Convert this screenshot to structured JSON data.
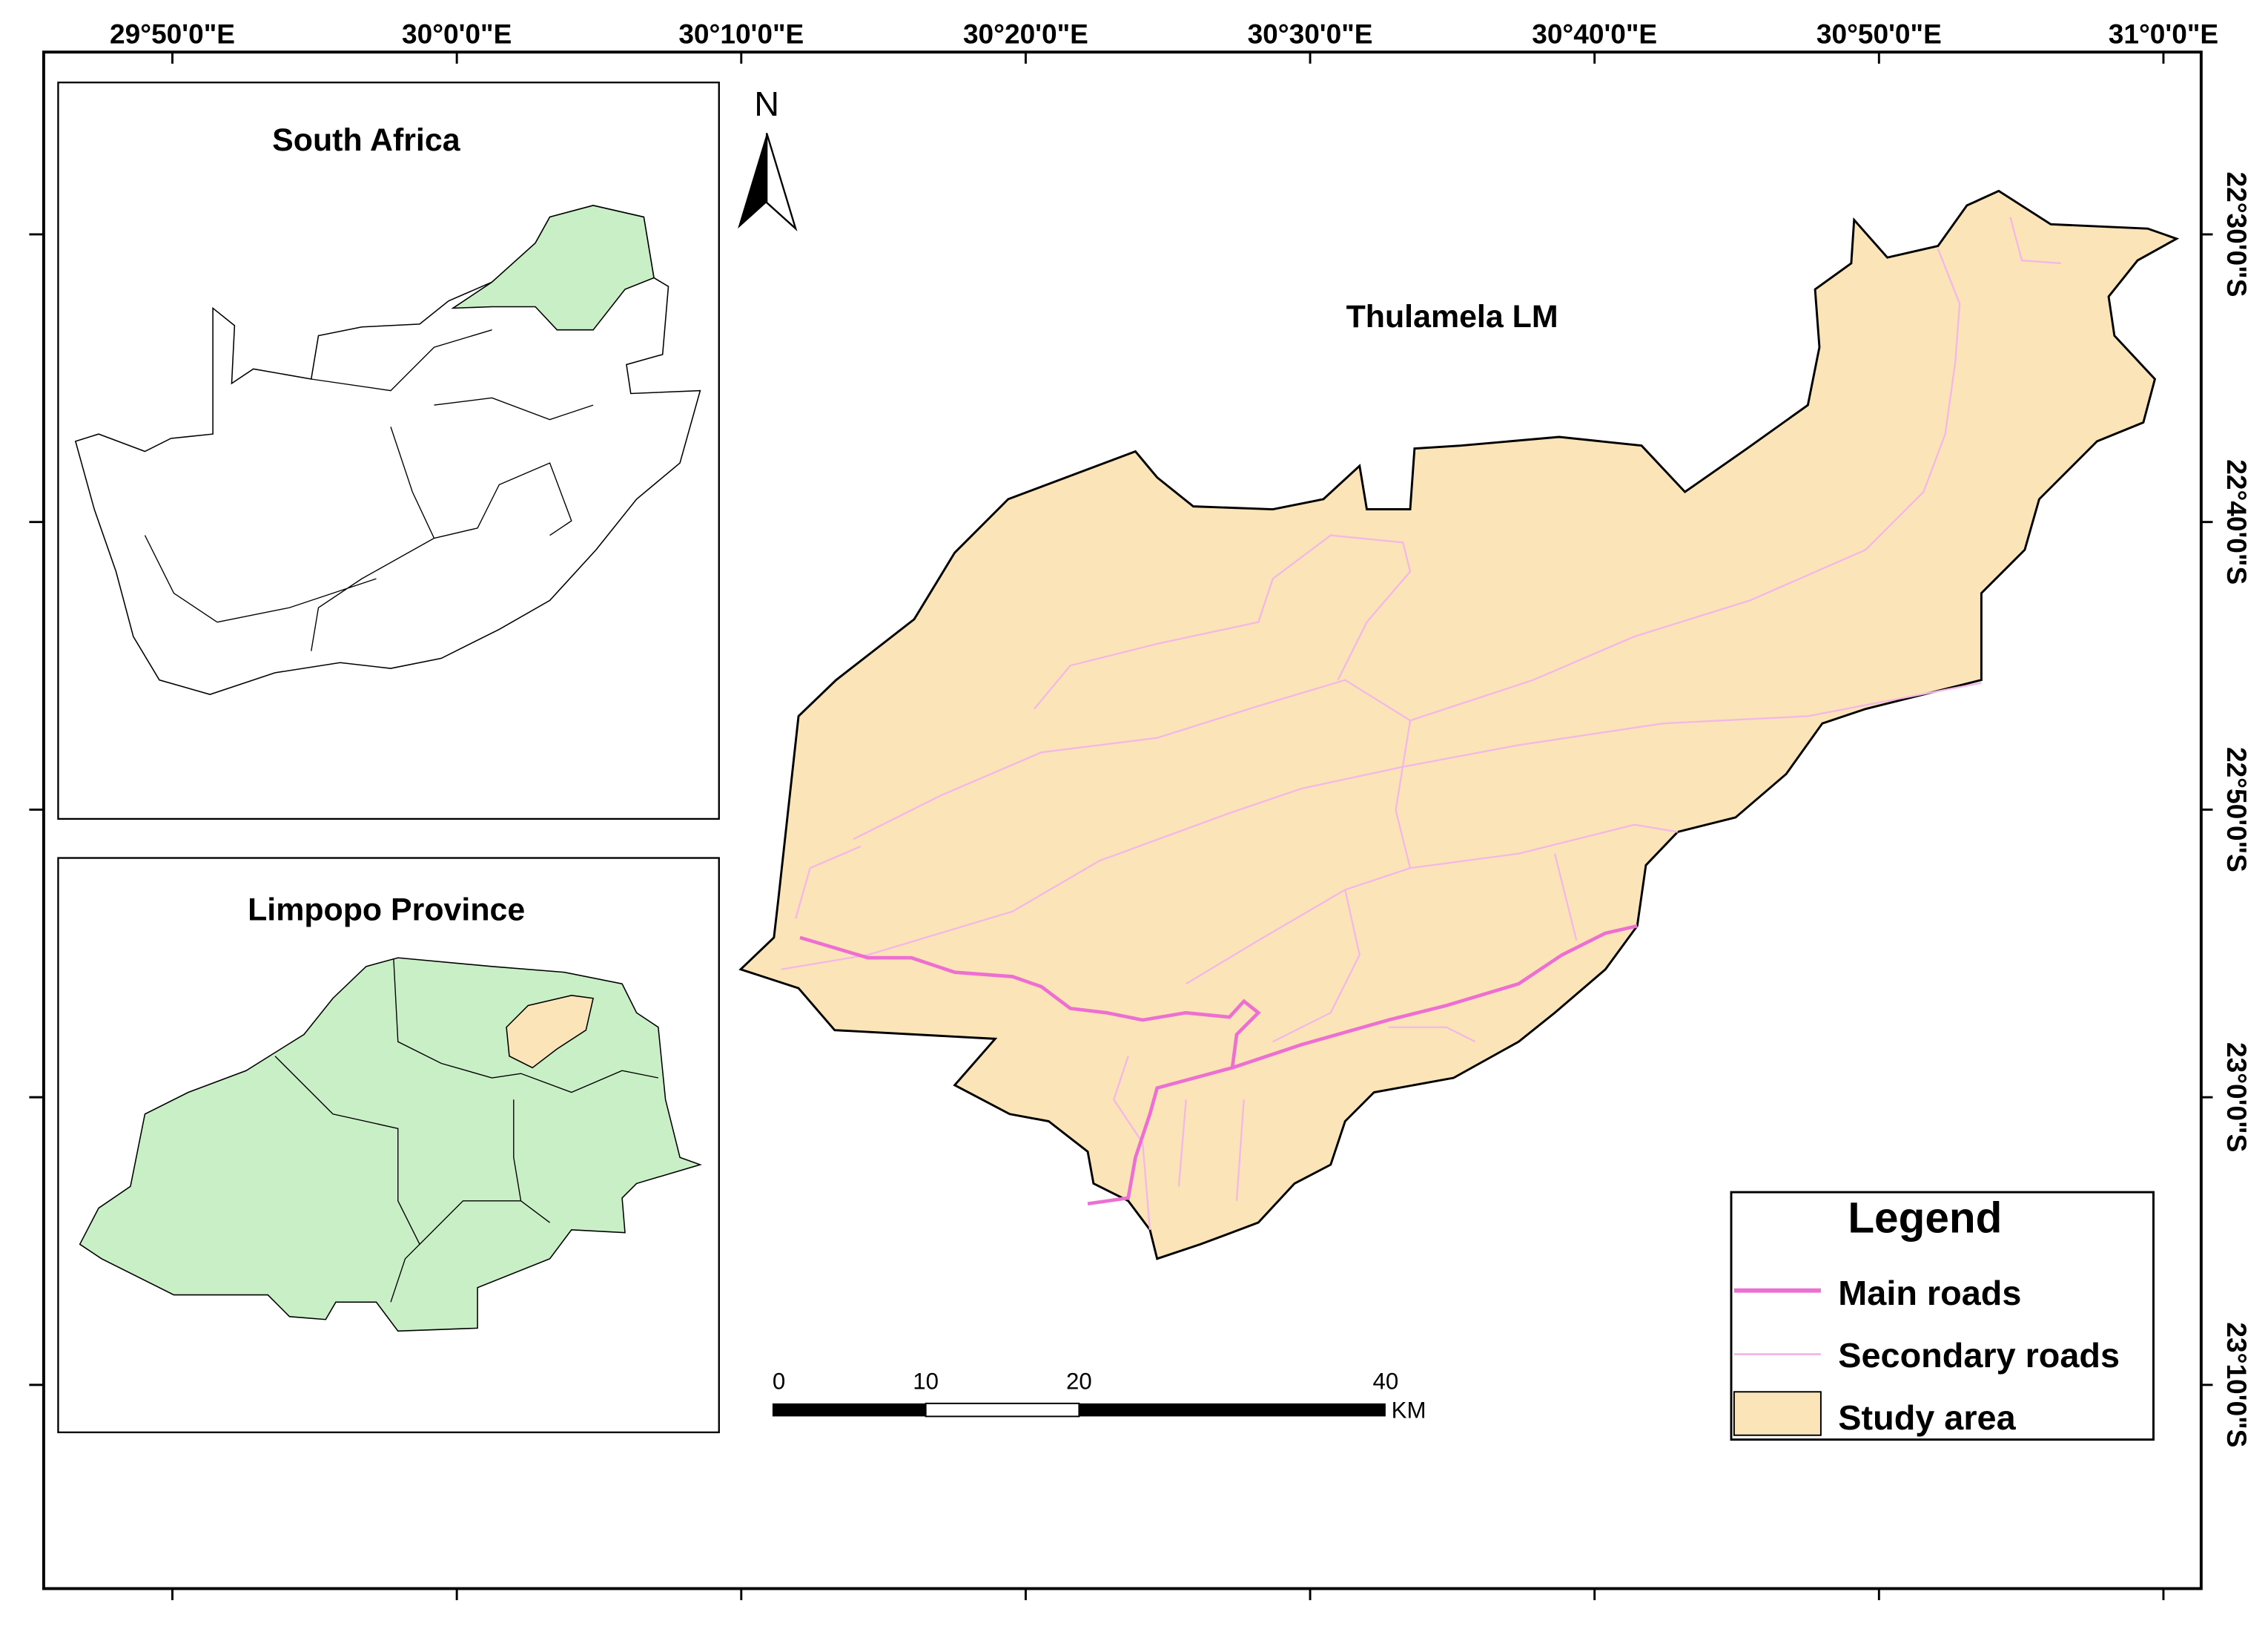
{
  "longitude_labels": [
    "29°50'0\"E",
    "30°0'0\"E",
    "30°10'0\"E",
    "30°20'0\"E",
    "30°30'0\"E",
    "30°40'0\"E",
    "30°50'0\"E",
    "31°0'0\"E"
  ],
  "latitude_labels": [
    "22°30'0\"S",
    "22°40'0\"S",
    "22°50'0\"S",
    "23°0'0\"S",
    "23°10'0\"S"
  ],
  "insets": [
    {
      "title": "South Africa"
    },
    {
      "title": "Limpopo Province"
    }
  ],
  "map": {
    "title": "Thulamela LM",
    "north": "N"
  },
  "scale_bar": {
    "labels": [
      "0",
      "10",
      "20",
      "40"
    ],
    "unit": "KM"
  },
  "legend": {
    "title": "Legend",
    "items": [
      "Main roads",
      "Secondary roads",
      "Study area"
    ]
  }
}
